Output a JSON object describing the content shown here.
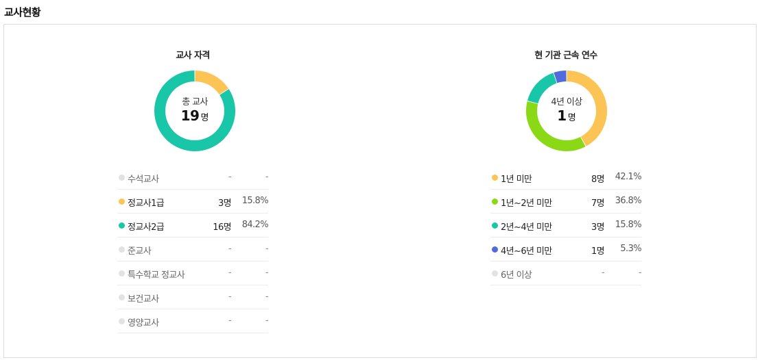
{
  "page": {
    "title": "교사현황"
  },
  "chart_data": [
    {
      "type": "pie",
      "title": "교사 자격",
      "center": {
        "label": "총 교사",
        "value": "19",
        "unit": "명"
      },
      "categories": [
        "수석교사",
        "정교사1급",
        "정교사2급",
        "준교사",
        "특수학교 정교사",
        "보건교사",
        "영양교사"
      ],
      "values": [
        0,
        3,
        16,
        0,
        0,
        0,
        0
      ],
      "count_labels": [
        "-",
        "3명",
        "16명",
        "-",
        "-",
        "-",
        "-"
      ],
      "percent_labels": [
        "-",
        "15.8%",
        "84.2%",
        "-",
        "-",
        "-",
        "-"
      ],
      "colors": [
        "#e2e2e2",
        "#fcc454",
        "#1ac6a8",
        "#e2e2e2",
        "#e2e2e2",
        "#e2e2e2",
        "#e2e2e2"
      ]
    },
    {
      "type": "pie",
      "title": "현 기관 근속 연수",
      "center": {
        "label": "4년 이상",
        "value": "1",
        "unit": "명"
      },
      "categories": [
        "1년 미만",
        "1년~2년 미만",
        "2년~4년 미만",
        "4년~6년 미만",
        "6년 이상"
      ],
      "values": [
        8,
        7,
        3,
        1,
        0
      ],
      "count_labels": [
        "8명",
        "7명",
        "3명",
        "1명",
        "-"
      ],
      "percent_labels": [
        "42.1%",
        "36.8%",
        "15.8%",
        "5.3%",
        "-"
      ],
      "colors": [
        "#fcc454",
        "#8bd916",
        "#1ac6a8",
        "#4f6bdc",
        "#e2e2e2"
      ]
    }
  ]
}
